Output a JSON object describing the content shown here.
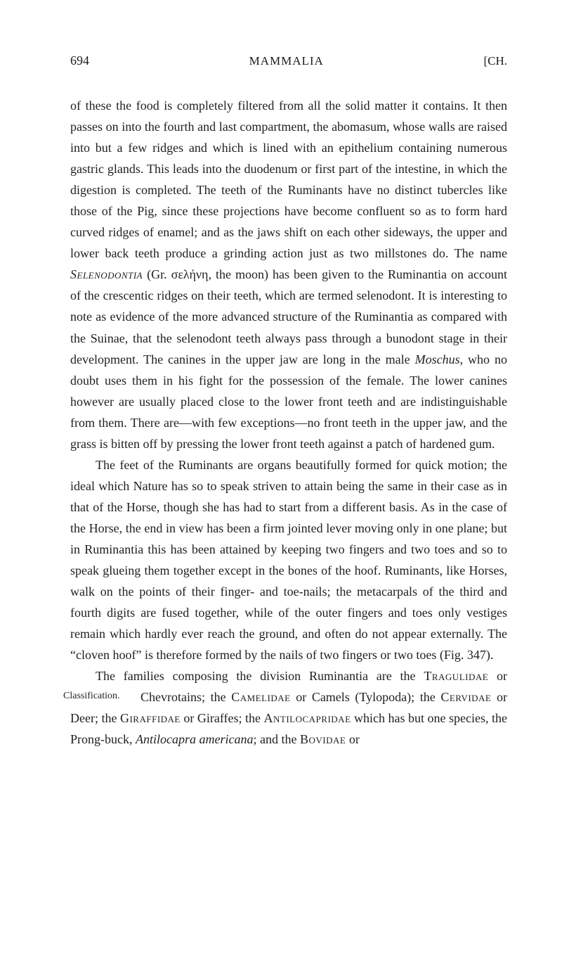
{
  "header": {
    "page_number": "694",
    "running_title": "MAMMALIA",
    "chapter_mark": "[CH."
  },
  "paragraphs": {
    "p1": {
      "t1": "of these the food is completely filtered from all the solid matter it contains. It then passes on into the fourth and last compartment, the abomasum, whose walls are raised into but a few ridges and which is lined with an epithelium containing numerous gastric glands. This leads into the duodenum or first part of the intestine, in which the digestion is completed. The teeth of the Ruminants have no distinct tubercles like those of the Pig, since these pro­jections have become confluent so as to form hard curved ridges of enamel; and as the jaws shift on each other sideways, the upper and lower back teeth produce a grinding action just as two mill­stones do. The name ",
      "sc1": "Selenodontia",
      "t2": " (Gr. σελήνη, the moon) has been given to the Ruminantia on account of the crescentic ridges on their teeth, which are termed selenodont. It is interesting to note as evidence of the more advanced structure of the Ruminantia as compared with the Suinae, that the selenodont teeth always pass through a bunodont stage in their development. The canines in the upper jaw are long in the male ",
      "it1": "Moschus",
      "t3": ", who no doubt uses them in his fight for the possession of the female. The lower canines however are usually placed close to the lower front teeth and are indistinguishable from them. There are—with few ex­ceptions—no front teeth in the upper jaw, and the grass is bitten off by pressing the lower front teeth against a patch of hardened gum."
    },
    "p2": {
      "t1": "The feet of the Ruminants are organs beautifully formed for quick motion; the ideal which Nature has so to speak striven to attain being the same in their case as in that of the Horse, though she has had to start from a different basis. As in the case of the Horse, the end in view has been a firm jointed lever moving only in one plane; but in Ruminantia this has been attained by keeping two fingers and two toes and so to speak glueing them together except in the bones of the hoof. Ruminants, like Horses, walk on the points of their finger- and toe-nails; the metacarpals of the third and fourth digits are fused together, while of the outer fingers and toes only vestiges remain which hardly ever reach the ground, and often do not appear externally. The “cloven hoof” is therefore formed by the nails of two fingers or two toes (Fig. 347)."
    },
    "p3": {
      "t1": "The families composing the division Ruminantia are the ",
      "sc1": "Tragu­lidae",
      "t2": " or Chevrotains; the ",
      "sc2": "Camelidae",
      "t3": " or Camels (Tylopoda); the ",
      "sc3": "Cervidae",
      "t4": " or Deer; the ",
      "sc4": "Giraffidae",
      "t5": " or Giraffes; the ",
      "sc5": "Antilocapridae",
      "t6": " which has but one species, the Prong-buck, ",
      "it1": "Antilocapra americana",
      "t7": "; and the ",
      "sc6": "Bovidae",
      "t8": " or"
    }
  },
  "side_note": "Classification."
}
